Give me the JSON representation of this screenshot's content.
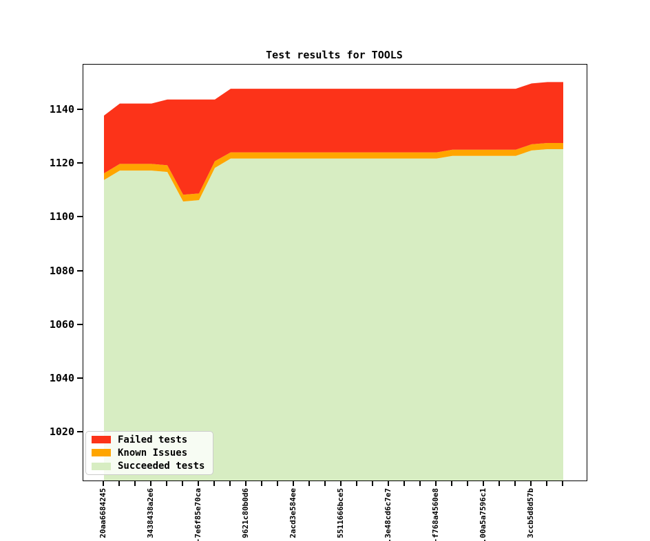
{
  "title": "Test results for TOOLS",
  "legend": {
    "items": [
      {
        "label": "Failed tests",
        "color": "#fc3319"
      },
      {
        "label": "Known Issues",
        "color": "#ffa500"
      },
      {
        "label": "Succeeded tests",
        "color": "#d7edc2"
      }
    ]
  },
  "chart_data": {
    "type": "area",
    "stacked": true,
    "title": "Test results for TOOLS",
    "xlabel": "",
    "ylabel": "",
    "grid": false,
    "legend_position": "lower left",
    "ylim": [
      1002,
      1157
    ],
    "yticks": [
      1020,
      1040,
      1060,
      1080,
      1100,
      1120,
      1140
    ],
    "n_points": 30,
    "x_tick_labels": [
      {
        "index": 0,
        "text": "20aa6684245"
      },
      {
        "index": 3,
        "text": "3438438a2e6"
      },
      {
        "index": 6,
        "text": "-7e6f85e70ca"
      },
      {
        "index": 9,
        "text": "9621c80b0d6"
      },
      {
        "index": 12,
        "text": "2acd3e584ee"
      },
      {
        "index": 15,
        "text": "5511666bce5"
      },
      {
        "index": 18,
        "text": ".3e48cd6c7e7"
      },
      {
        "index": 21,
        "text": "-f768a4560e8"
      },
      {
        "index": 24,
        "text": ".00a5a7596c1"
      },
      {
        "index": 27,
        "text": "3ccb5d8d57b"
      }
    ],
    "series": [
      {
        "name": "Succeeded tests",
        "color": "#d7edc2",
        "cumulative_top": [
          1114,
          1117.5,
          1117.5,
          1117.5,
          1117,
          1106,
          1106.5,
          1118.5,
          1122,
          1122,
          1122,
          1122,
          1122,
          1122,
          1122,
          1122,
          1122,
          1122,
          1122,
          1122,
          1122,
          1122,
          1123,
          1123,
          1123,
          1123,
          1123,
          1125,
          1125.5,
          1125.5
        ]
      },
      {
        "name": "Known Issues",
        "color": "#ffa500",
        "cumulative_top": [
          1116.5,
          1120,
          1120,
          1120,
          1119.5,
          1108.5,
          1109,
          1121,
          1124.3,
          1124.3,
          1124.3,
          1124.3,
          1124.3,
          1124.3,
          1124.3,
          1124.3,
          1124.3,
          1124.3,
          1124.3,
          1124.3,
          1124.3,
          1124.3,
          1125.3,
          1125.3,
          1125.3,
          1125.3,
          1125.3,
          1127.3,
          1127.8,
          1127.8
        ]
      },
      {
        "name": "Failed tests",
        "color": "#fc3319",
        "cumulative_top": [
          1138,
          1142.5,
          1142.5,
          1142.5,
          1144,
          1144,
          1144,
          1144,
          1148,
          1148,
          1148,
          1148,
          1148,
          1148,
          1148,
          1148,
          1148,
          1148,
          1148,
          1148,
          1148,
          1148,
          1148,
          1148,
          1148,
          1148,
          1148,
          1150,
          1150.5,
          1150.5
        ]
      }
    ]
  }
}
